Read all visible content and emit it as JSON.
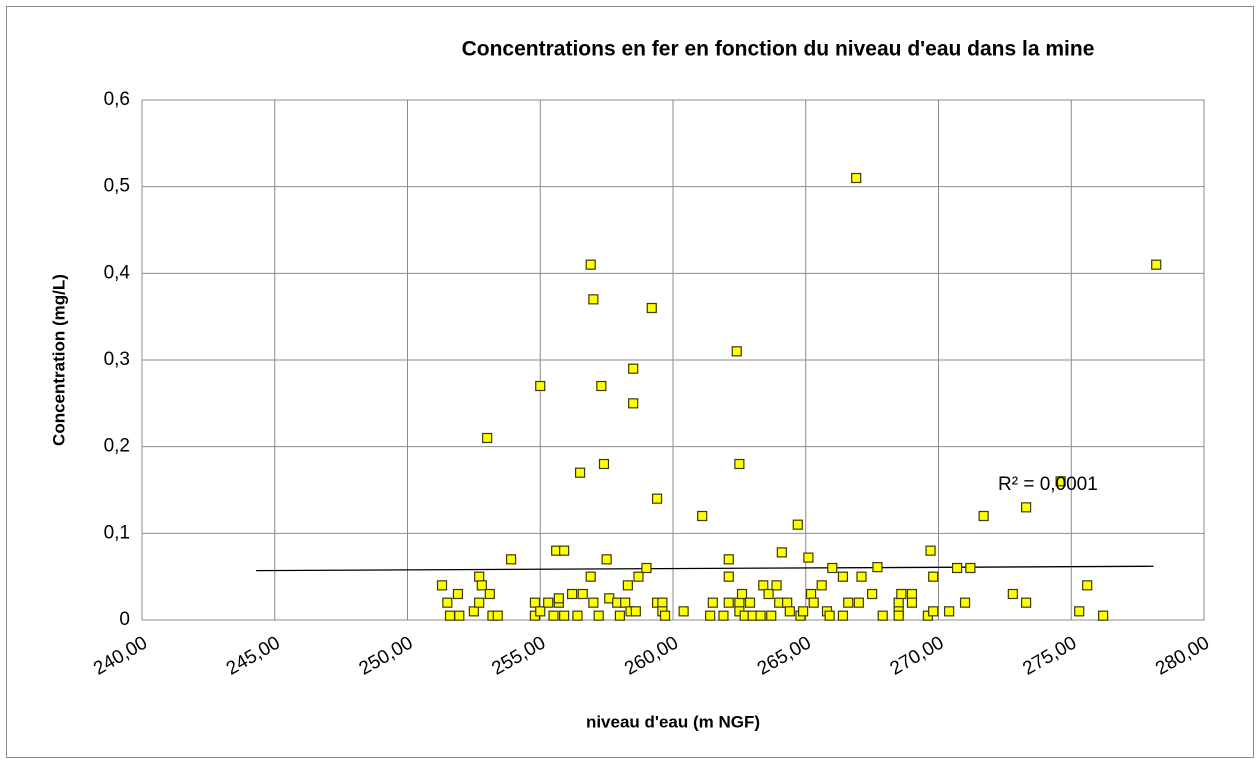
{
  "chart_data": {
    "type": "scatter",
    "title": "Concentrations en fer en fonction du niveau d'eau dans la mine",
    "x_label": "niveau d'eau (m NGF)",
    "y_label": "Concentration (mg/L)",
    "annotation": "R² = 0,0001",
    "color": "#ffff00",
    "grid": true,
    "xlim": [
      240,
      280
    ],
    "ylim": [
      0,
      0.6
    ],
    "xticks": [
      {
        "value": 240,
        "label": "240,00"
      },
      {
        "value": 245,
        "label": "245,00"
      },
      {
        "value": 250,
        "label": "250,00"
      },
      {
        "value": 255,
        "label": "255,00"
      },
      {
        "value": 260,
        "label": "260,00"
      },
      {
        "value": 265,
        "label": "265,00"
      },
      {
        "value": 270,
        "label": "270,00"
      },
      {
        "value": 275,
        "label": "275,00"
      },
      {
        "value": 280,
        "label": "280,00"
      }
    ],
    "yticks": [
      0,
      {
        "value": 0.1,
        "label": "0,1"
      },
      {
        "value": 0.2,
        "label": "0,2"
      },
      {
        "value": 0.3,
        "label": "0,3"
      },
      {
        "value": 0.4,
        "label": "0,4"
      },
      {
        "value": 0.5,
        "label": "0,5"
      },
      {
        "value": 0.6,
        "label": "0,6"
      }
    ],
    "trendline": {
      "x": [
        244.3,
        278.1
      ],
      "y": [
        0.057,
        0.062
      ]
    },
    "x": [
      251.3,
      251.5,
      251.6,
      251.9,
      251.95,
      252.5,
      252.7,
      252.7,
      252.8,
      253.0,
      253.1,
      253.2,
      253.4,
      253.9,
      254.8,
      254.8,
      255.0,
      255.0,
      255.3,
      255.5,
      255.6,
      255.7,
      255.7,
      255.9,
      255.9,
      256.2,
      256.4,
      256.5,
      256.6,
      256.9,
      256.9,
      257.0,
      257.0,
      257.2,
      257.3,
      257.4,
      257.5,
      257.6,
      257.9,
      258.0,
      258.2,
      258.3,
      258.4,
      258.5,
      258.5,
      258.6,
      258.7,
      259.0,
      259.2,
      259.4,
      259.4,
      259.6,
      259.6,
      259.7,
      260.4,
      261.1,
      261.4,
      261.5,
      261.9,
      262.1,
      262.1,
      262.1,
      262.4,
      262.5,
      262.5,
      262.5,
      262.6,
      262.7,
      262.9,
      263.0,
      263.3,
      263.4,
      263.6,
      263.7,
      263.9,
      264.0,
      264.1,
      264.3,
      264.4,
      264.7,
      264.8,
      264.9,
      265.1,
      265.2,
      265.3,
      265.6,
      265.8,
      265.9,
      266.0,
      266.4,
      266.4,
      266.6,
      266.9,
      267.0,
      267.1,
      267.5,
      267.7,
      267.9,
      268.5,
      268.5,
      268.5,
      268.6,
      269.0,
      269.0,
      269.6,
      269.7,
      269.8,
      269.8,
      270.4,
      270.7,
      271.0,
      271.2,
      271.7,
      272.8,
      273.3,
      273.3,
      274.6,
      275.3,
      275.6,
      276.2,
      278.2
    ],
    "values": [
      0.04,
      0.02,
      0.005,
      0.03,
      0.005,
      0.01,
      0.05,
      0.02,
      0.04,
      0.21,
      0.03,
      0.005,
      0.005,
      0.07,
      0.02,
      0.005,
      0.01,
      0.27,
      0.02,
      0.005,
      0.08,
      0.02,
      0.025,
      0.08,
      0.005,
      0.03,
      0.005,
      0.17,
      0.03,
      0.41,
      0.05,
      0.02,
      0.37,
      0.005,
      0.27,
      0.18,
      0.07,
      0.025,
      0.02,
      0.005,
      0.02,
      0.04,
      0.01,
      0.29,
      0.25,
      0.01,
      0.05,
      0.06,
      0.36,
      0.14,
      0.02,
      0.02,
      0.01,
      0.005,
      0.01,
      0.12,
      0.005,
      0.02,
      0.005,
      0.05,
      0.07,
      0.02,
      0.31,
      0.18,
      0.02,
      0.01,
      0.03,
      0.005,
      0.02,
      0.005,
      0.005,
      0.04,
      0.03,
      0.005,
      0.04,
      0.02,
      0.078,
      0.02,
      0.01,
      0.11,
      0.005,
      0.01,
      0.072,
      0.03,
      0.02,
      0.04,
      0.01,
      0.005,
      0.06,
      0.05,
      0.005,
      0.02,
      0.51,
      0.02,
      0.05,
      0.03,
      0.061,
      0.005,
      0.02,
      0.01,
      0.005,
      0.03,
      0.03,
      0.02,
      0.005,
      0.08,
      0.01,
      0.05,
      0.01,
      0.06,
      0.02,
      0.06,
      0.12,
      0.03,
      0.13,
      0.02,
      0.16,
      0.01,
      0.04,
      0.005,
      0.41
    ]
  }
}
